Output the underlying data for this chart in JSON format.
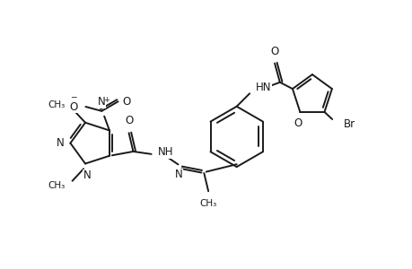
{
  "bg_color": "#ffffff",
  "line_color": "#1a1a1a",
  "bond_width": 1.4,
  "font_size": 8.5,
  "font_size_small": 7.5,
  "xlim": [
    0,
    9.5
  ],
  "ylim": [
    0,
    6.0
  ],
  "figsize": [
    4.6,
    3.0
  ],
  "dpi": 100
}
